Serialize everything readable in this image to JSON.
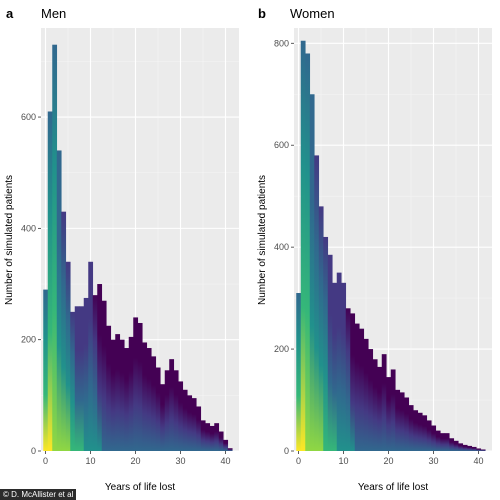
{
  "credit": "© D. McAllister et al",
  "chart_data": [
    {
      "type": "bar",
      "panel_letter": "a",
      "title": "Men",
      "xlabel": "Years of life lost",
      "ylabel": "Number of simulated patients",
      "xlim": [
        -1,
        43
      ],
      "ylim": [
        0,
        760
      ],
      "xticks": [
        0,
        10,
        20,
        30,
        40
      ],
      "yticks": [
        0,
        200,
        400,
        600
      ],
      "bin_width": 1,
      "x": [
        0,
        1,
        2,
        3,
        4,
        5,
        6,
        7,
        8,
        9,
        10,
        11,
        12,
        13,
        14,
        15,
        16,
        17,
        18,
        19,
        20,
        21,
        22,
        23,
        24,
        25,
        26,
        27,
        28,
        29,
        30,
        31,
        32,
        33,
        34,
        35,
        36,
        37,
        38,
        39,
        40,
        41
      ],
      "values": [
        290,
        610,
        730,
        540,
        430,
        340,
        250,
        260,
        260,
        275,
        340,
        280,
        300,
        270,
        225,
        200,
        210,
        200,
        185,
        205,
        240,
        230,
        195,
        185,
        170,
        150,
        120,
        145,
        165,
        145,
        125,
        110,
        100,
        95,
        80,
        55,
        50,
        45,
        50,
        35,
        20,
        5
      ]
    },
    {
      "type": "bar",
      "panel_letter": "b",
      "title": "Women",
      "xlabel": "Years of life lost",
      "ylabel": "Number of simulated patients",
      "xlim": [
        -1,
        43
      ],
      "ylim": [
        0,
        830
      ],
      "xticks": [
        0,
        10,
        20,
        30,
        40
      ],
      "yticks": [
        0,
        200,
        400,
        600,
        800
      ],
      "bin_width": 1,
      "x": [
        0,
        1,
        2,
        3,
        4,
        5,
        6,
        7,
        8,
        9,
        10,
        11,
        12,
        13,
        14,
        15,
        16,
        17,
        18,
        19,
        20,
        21,
        22,
        23,
        24,
        25,
        26,
        27,
        28,
        29,
        30,
        31,
        32,
        33,
        34,
        35,
        36,
        37,
        38,
        39,
        40,
        41
      ],
      "values": [
        310,
        805,
        780,
        700,
        580,
        480,
        420,
        385,
        330,
        350,
        330,
        280,
        270,
        250,
        240,
        220,
        200,
        180,
        165,
        190,
        145,
        160,
        120,
        115,
        105,
        90,
        80,
        75,
        70,
        60,
        50,
        40,
        35,
        35,
        25,
        20,
        15,
        12,
        10,
        8,
        5,
        3
      ]
    }
  ],
  "colors": {
    "panel_bg": "#ebebeb",
    "grid_major": "#ffffff",
    "grid_minor": "#f4f4f4",
    "gradient": [
      "#fde725",
      "#90d743",
      "#35b779",
      "#21918c",
      "#31688e",
      "#443983",
      "#440154"
    ]
  }
}
